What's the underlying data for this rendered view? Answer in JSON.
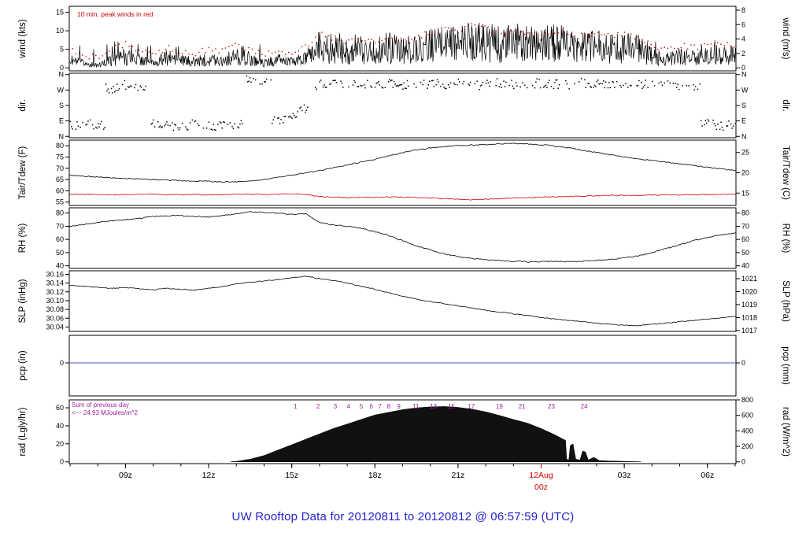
{
  "title": "UW Rooftop Data for 20120811  to  20120812 @ 06:57:59  (UTC)",
  "colors": {
    "title": "#2222cc",
    "trace": "#000000",
    "red": "#cc0000",
    "purple": "#a020a0",
    "pcp_line": "#4455bb",
    "rad_fill": "#111111"
  },
  "annotations": {
    "wind_note": "10 min. peak winds in red",
    "rad_sum_line1": "Sum of previous day",
    "rad_sum_line2": "<--- 24.93 MJoules/m^2",
    "rad_hour_marks": [
      {
        "label": "1",
        "t": 15.13
      },
      {
        "label": "2",
        "t": 15.95
      },
      {
        "label": "3",
        "t": 16.57
      },
      {
        "label": "4",
        "t": 17.05
      },
      {
        "label": "5",
        "t": 17.51
      },
      {
        "label": "6",
        "t": 17.87
      },
      {
        "label": "7",
        "t": 18.18
      },
      {
        "label": "8",
        "t": 18.5
      },
      {
        "label": "9",
        "t": 18.86
      },
      {
        "label": "11",
        "t": 19.48
      },
      {
        "label": "13",
        "t": 20.11
      },
      {
        "label": "15",
        "t": 20.76
      },
      {
        "label": "17",
        "t": 21.48
      },
      {
        "label": "19",
        "t": 22.49
      },
      {
        "label": "21",
        "t": 23.31
      },
      {
        "label": "23",
        "t": 24.37
      },
      {
        "label": "24",
        "t": 25.55
      }
    ]
  },
  "x_axis": {
    "t_min": 6.97,
    "t_max": 31.03,
    "ticks": [
      {
        "t": 9,
        "label": "09z",
        "color": "#000000"
      },
      {
        "t": 12,
        "label": "12z",
        "color": "#000000"
      },
      {
        "t": 15,
        "label": "15z",
        "color": "#000000"
      },
      {
        "t": 18,
        "label": "18z",
        "color": "#000000"
      },
      {
        "t": 21,
        "label": "21z",
        "color": "#000000"
      },
      {
        "t": 24,
        "label": "12Aug",
        "label2": "00z",
        "color": "#cc0000"
      },
      {
        "t": 27,
        "label": "03z",
        "color": "#000000"
      },
      {
        "t": 30,
        "label": "06z",
        "color": "#000000"
      }
    ]
  },
  "chart_data": [
    {
      "type": "line",
      "name": "wind",
      "left_title": "wind (kts)",
      "right_title": "wind (m/s)",
      "range": [
        -0.8,
        16.6
      ],
      "left_ticks": [
        {
          "v": 0,
          "label": "0"
        },
        {
          "v": 5,
          "label": "5"
        },
        {
          "v": 10,
          "label": "10"
        },
        {
          "v": 15,
          "label": "15"
        }
      ],
      "right_ticks": [
        {
          "v": 0,
          "label": "0"
        },
        {
          "v": 3.89,
          "label": "2"
        },
        {
          "v": 7.78,
          "label": "4"
        },
        {
          "v": 11.66,
          "label": "6"
        },
        {
          "v": 15.55,
          "label": "8"
        }
      ],
      "t_start": 7,
      "t_step": 0.5,
      "series": [
        {
          "name": "wind_mean_kts",
          "color": "#000000",
          "values": [
            2,
            1.2,
            0.6,
            2.2,
            3.2,
            2.2,
            1.2,
            2.8,
            2.0,
            1.6,
            2.4,
            2.0,
            3.0,
            2.4,
            1.2,
            2.2,
            1.6,
            2.4,
            5.8,
            5.0,
            4.2,
            5.0,
            4.2,
            5.0,
            4.6,
            5.2,
            6.0,
            6.8,
            6.2,
            7.8,
            7.0,
            6.2,
            6.8,
            6.4,
            6.0,
            6.8,
            6.0,
            5.2,
            6.0,
            5.2,
            5.8,
            5.0,
            3.0,
            2.2,
            3.0,
            2.6,
            3.2,
            4.0,
            3.2
          ]
        },
        {
          "name": "wind_peak_10min_kts",
          "color": "#cc0000",
          "values": [
            5,
            3.5,
            2.5,
            5,
            6.5,
            5,
            3.5,
            5.5,
            4.5,
            4,
            5,
            4.5,
            6,
            5,
            3.5,
            4.5,
            4,
            5.5,
            9,
            8,
            7,
            8,
            7,
            8,
            7.5,
            8.5,
            9.5,
            10.5,
            9.5,
            12,
            10.5,
            9.5,
            10,
            9.5,
            9,
            10,
            9,
            8.5,
            9,
            8.5,
            9,
            8,
            6,
            5,
            6,
            5.5,
            6,
            7,
            6
          ]
        }
      ]
    },
    {
      "type": "scatter",
      "name": "dir",
      "left_title": "dir.",
      "right_title": "dir.",
      "range": [
        -8,
        368
      ],
      "left_ticks": [
        {
          "v": 0,
          "label": "N"
        },
        {
          "v": 90,
          "label": "E"
        },
        {
          "v": 180,
          "label": "S"
        },
        {
          "v": 270,
          "label": "W"
        },
        {
          "v": 360,
          "label": "N"
        }
      ],
      "right_ticks": [
        {
          "v": 0,
          "label": "N"
        },
        {
          "v": 90,
          "label": "E"
        },
        {
          "v": 180,
          "label": "S"
        },
        {
          "v": 270,
          "label": "W"
        },
        {
          "v": 360,
          "label": "N"
        }
      ],
      "t_start": 7,
      "t_step": 0.5,
      "series": [
        {
          "name": "wind_dir_deg",
          "color": "#000000",
          "values": [
            60,
            70,
            65,
            280,
            300,
            290,
            70,
            60,
            65,
            70,
            60,
            65,
            70,
            330,
            320,
            90,
            130,
            160,
            300,
            310,
            305,
            300,
            310,
            305,
            300,
            310,
            305,
            300,
            310,
            305,
            300,
            310,
            305,
            300,
            310,
            305,
            300,
            310,
            305,
            300,
            310,
            300,
            305,
            310,
            300,
            290,
            80,
            60,
            70
          ]
        }
      ]
    },
    {
      "type": "line",
      "name": "tair_tdew",
      "left_title": "Tair/Tdew (F)",
      "right_title": "Tair/Tdew (C)",
      "range": [
        53.5,
        82.5
      ],
      "left_ticks": [
        {
          "v": 55,
          "label": "55"
        },
        {
          "v": 60,
          "label": "60"
        },
        {
          "v": 65,
          "label": "65"
        },
        {
          "v": 70,
          "label": "70"
        },
        {
          "v": 75,
          "label": "75"
        },
        {
          "v": 80,
          "label": "80"
        }
      ],
      "right_ticks": [
        {
          "v": 59,
          "label": "15"
        },
        {
          "v": 68,
          "label": "20"
        },
        {
          "v": 77,
          "label": "25"
        }
      ],
      "t_start": 7,
      "t_step": 0.5,
      "series": [
        {
          "name": "tair_f",
          "color": "#000000",
          "values": [
            67,
            66.5,
            66.2,
            65.8,
            65.5,
            65.2,
            65,
            64.8,
            64.5,
            64.3,
            64.2,
            64,
            64,
            64.3,
            65,
            66,
            67,
            68,
            69,
            70.2,
            71.5,
            72.8,
            74,
            75.5,
            77,
            78.2,
            79,
            79.6,
            80,
            80.3,
            80.5,
            80.8,
            81,
            80.8,
            80.5,
            79.8,
            79,
            78,
            77,
            76,
            75,
            74.2,
            73.5,
            72.7,
            72,
            71.2,
            70.5,
            69.7,
            69
          ]
        },
        {
          "name": "tdew_f",
          "color": "#cc0000",
          "values": [
            58.5,
            58.3,
            58.4,
            58.2,
            58.3,
            58.5,
            58.4,
            58.2,
            58.3,
            58.4,
            58.2,
            58.3,
            58.5,
            58.4,
            58.3,
            58.5,
            58.6,
            58.4,
            57.4,
            57.2,
            57.0,
            57.2,
            57.1,
            57.3,
            57.2,
            57.0,
            56.8,
            56.5,
            56.3,
            56.0,
            56.3,
            56.5,
            56.8,
            57.0,
            57.2,
            57.3,
            57.5,
            57.6,
            57.8,
            57.9,
            58.0,
            58.0,
            58.1,
            58.2,
            58.2,
            58.3,
            58.3,
            58.4,
            58.4
          ]
        }
      ]
    },
    {
      "type": "line",
      "name": "rh",
      "left_title": "RH (%)",
      "right_title": "RH (%)",
      "range": [
        38,
        84
      ],
      "left_ticks": [
        {
          "v": 40,
          "label": "40"
        },
        {
          "v": 50,
          "label": "50"
        },
        {
          "v": 60,
          "label": "60"
        },
        {
          "v": 70,
          "label": "70"
        },
        {
          "v": 80,
          "label": "80"
        }
      ],
      "right_ticks": [
        {
          "v": 40,
          "label": "40"
        },
        {
          "v": 50,
          "label": "50"
        },
        {
          "v": 60,
          "label": "60"
        },
        {
          "v": 70,
          "label": "70"
        },
        {
          "v": 80,
          "label": "80"
        }
      ],
      "t_start": 7,
      "t_step": 0.5,
      "series": [
        {
          "name": "rh_pct",
          "color": "#000000",
          "values": [
            70,
            71.5,
            73,
            74,
            75,
            76,
            77.5,
            78,
            78,
            77.5,
            77,
            78,
            79.5,
            81,
            80.5,
            80,
            79,
            79.5,
            73,
            71,
            70,
            68.5,
            66,
            63,
            59,
            55,
            52,
            49,
            47,
            45.5,
            44.5,
            44,
            43.5,
            43,
            43,
            43.5,
            43,
            43.5,
            44,
            45,
            46,
            47.5,
            50,
            53,
            56,
            59,
            61.5,
            63.5,
            65
          ]
        }
      ]
    },
    {
      "type": "line",
      "name": "slp",
      "left_title": "SLP (inHg)",
      "right_title": "SLP (hPa)",
      "range": [
        30.03,
        30.168
      ],
      "left_ticks": [
        {
          "v": 30.04,
          "label": "30.04"
        },
        {
          "v": 30.06,
          "label": "30.06"
        },
        {
          "v": 30.08,
          "label": "30.08"
        },
        {
          "v": 30.1,
          "label": "30.10"
        },
        {
          "v": 30.12,
          "label": "30.12"
        },
        {
          "v": 30.14,
          "label": "30.14"
        },
        {
          "v": 30.16,
          "label": "30.16"
        }
      ],
      "right_ticks": [
        {
          "v": 30.032,
          "label": "1017"
        },
        {
          "v": 30.0615,
          "label": "1018"
        },
        {
          "v": 30.091,
          "label": "1019"
        },
        {
          "v": 30.1205,
          "label": "1020"
        },
        {
          "v": 30.15,
          "label": "1021"
        }
      ],
      "t_start": 7,
      "t_step": 0.5,
      "series": [
        {
          "name": "slp_inhg",
          "color": "#000000",
          "values": [
            30.135,
            30.133,
            30.13,
            30.128,
            30.13,
            30.127,
            30.125,
            30.128,
            30.126,
            30.124,
            30.128,
            30.132,
            30.138,
            30.142,
            30.145,
            30.148,
            30.152,
            30.156,
            30.15,
            30.146,
            30.14,
            30.133,
            30.126,
            30.118,
            30.11,
            30.103,
            30.098,
            30.093,
            30.088,
            30.083,
            30.078,
            30.074,
            30.07,
            30.066,
            30.062,
            30.058,
            30.055,
            30.052,
            30.049,
            30.046,
            30.044,
            30.043,
            30.046,
            30.049,
            30.052,
            30.055,
            30.058,
            30.061,
            30.064
          ]
        }
      ]
    },
    {
      "type": "line",
      "name": "pcp",
      "left_title": "pcp (in)",
      "right_title": "pcp (mm)",
      "range": [
        -1.2,
        1.0
      ],
      "left_ticks": [
        {
          "v": 0,
          "label": "0"
        }
      ],
      "right_ticks": [
        {
          "v": 0,
          "label": "0"
        }
      ],
      "t_start": 7,
      "t_step": 24,
      "series": [
        {
          "name": "precip_in",
          "color": "#4455bb",
          "values": [
            0,
            0
          ]
        }
      ]
    },
    {
      "type": "area",
      "name": "rad",
      "left_title": "rad (Lgly/hr)",
      "right_title": "rad (W/m^2)",
      "range": [
        -2,
        68.8
      ],
      "left_ticks": [
        {
          "v": 0,
          "label": "0"
        },
        {
          "v": 20,
          "label": "20"
        },
        {
          "v": 40,
          "label": "40"
        },
        {
          "v": 60,
          "label": "60"
        }
      ],
      "right_ticks": [
        {
          "v": 0,
          "label": "0"
        },
        {
          "v": 17.2,
          "label": "200"
        },
        {
          "v": 34.4,
          "label": "400"
        },
        {
          "v": 51.6,
          "label": "600"
        },
        {
          "v": 68.8,
          "label": "800"
        }
      ],
      "series_name": "solar_rad_ly_hr",
      "points": [
        [
          12.8,
          0
        ],
        [
          13.0,
          0.5
        ],
        [
          13.5,
          3
        ],
        [
          14,
          7
        ],
        [
          14.5,
          13
        ],
        [
          15,
          19
        ],
        [
          15.5,
          25
        ],
        [
          16,
          31
        ],
        [
          16.5,
          37
        ],
        [
          17,
          42
        ],
        [
          17.5,
          47
        ],
        [
          18,
          52
        ],
        [
          18.5,
          55
        ],
        [
          19,
          58
        ],
        [
          19.5,
          60
        ],
        [
          20,
          61
        ],
        [
          20.5,
          61.5
        ],
        [
          21,
          60.5
        ],
        [
          21.5,
          58.5
        ],
        [
          22,
          55.5
        ],
        [
          22.5,
          51.5
        ],
        [
          23,
          47
        ],
        [
          23.5,
          43
        ],
        [
          24,
          37
        ],
        [
          24.5,
          30
        ],
        [
          24.8,
          25
        ],
        [
          24.88,
          24
        ],
        [
          24.92,
          3
        ],
        [
          25.0,
          2
        ],
        [
          25.05,
          18
        ],
        [
          25.15,
          20
        ],
        [
          25.25,
          3
        ],
        [
          25.4,
          2
        ],
        [
          25.5,
          12
        ],
        [
          25.6,
          11
        ],
        [
          25.7,
          2
        ],
        [
          25.9,
          5
        ],
        [
          26.1,
          1.5
        ],
        [
          26.4,
          1
        ],
        [
          27.0,
          0.5
        ],
        [
          27.6,
          0
        ]
      ]
    }
  ]
}
